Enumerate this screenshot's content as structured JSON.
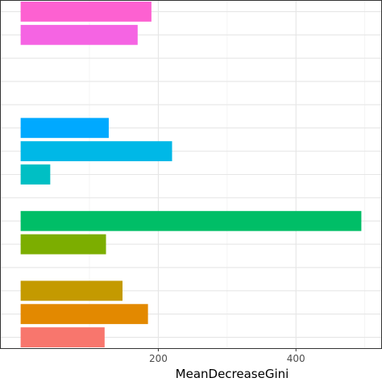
{
  "chart_data": {
    "type": "bar",
    "orientation": "horizontal",
    "title": "",
    "xlabel": "MeanDecreaseGini",
    "ylabel": "",
    "x_ticks": [
      200,
      400
    ],
    "x_tick_labels": [
      "200",
      "400"
    ],
    "xlim": [
      -30,
      525
    ],
    "grid": true,
    "legend": "none",
    "categories": [
      "",
      "",
      "",
      "",
      "",
      "",
      "",
      "",
      "",
      "",
      "",
      "",
      "",
      "",
      ""
    ],
    "values": [
      190,
      170,
      0,
      0,
      0,
      128,
      220,
      43,
      0,
      495,
      124,
      0,
      148,
      185,
      122
    ],
    "colors": [
      "#FD61D1",
      "#F564E3",
      "#E76BF3",
      "#C77CFF",
      "#9590FF",
      "#00A9FF",
      "#00B8E7",
      "#00BFC4",
      "#00C19A",
      "#00BE67",
      "#7CAE00",
      "#A3A500",
      "#C49A00",
      "#E38900",
      "#F8766D"
    ]
  }
}
